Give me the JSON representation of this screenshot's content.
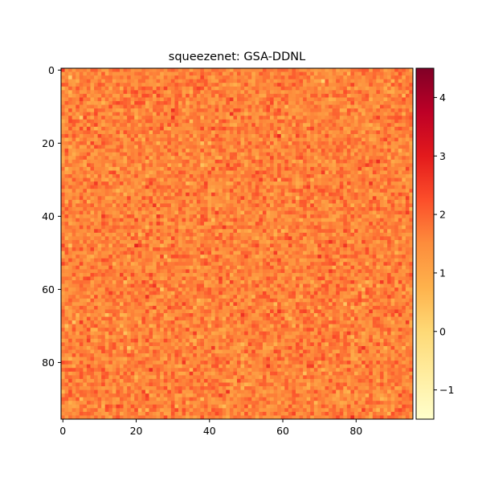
{
  "chart_data": {
    "type": "heatmap",
    "title": "squeezenet: GSA-DDNL",
    "xlabel": "",
    "ylabel": "",
    "grid_size": [
      96,
      96
    ],
    "xlim": [
      -0.5,
      95.5
    ],
    "ylim": [
      95.5,
      -0.5
    ],
    "x_ticks": [
      0,
      20,
      40,
      60,
      80
    ],
    "y_ticks": [
      0,
      20,
      40,
      60,
      80
    ],
    "colormap": "YlOrRd",
    "colormap_stops": [
      "#ffffcc",
      "#ffeda0",
      "#fed976",
      "#feb24c",
      "#fd8d3c",
      "#fc4e2a",
      "#e31a1c",
      "#bd0026",
      "#800026"
    ],
    "value_range": [
      -1.5,
      4.5
    ],
    "colorbar_ticks": [
      -1,
      0,
      1,
      2,
      3,
      4
    ],
    "value_distribution": {
      "mean": 1.6,
      "std": 0.35,
      "min": -1.5,
      "max": 4.5
    },
    "description_note": ""
  }
}
